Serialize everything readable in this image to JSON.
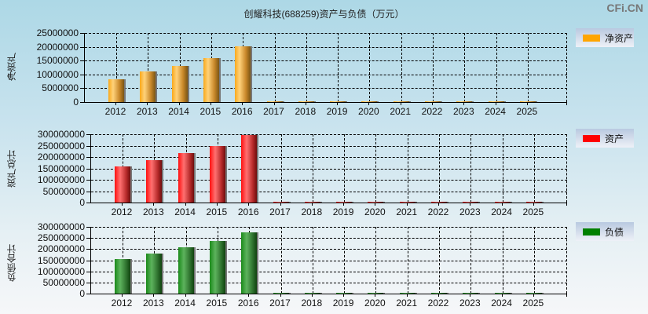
{
  "header": {
    "title": "创耀科技(688259)资产与负债（万元）",
    "watermark": "CFi.CN"
  },
  "colors": {
    "net_assets": "#FFA500",
    "assets": "#FF0000",
    "liabilities": "#008000"
  },
  "panels": [
    {
      "ylabel": "净资产",
      "legend": "净资产",
      "yticks": [
        "25000000",
        "20000000",
        "15000000",
        "10000000",
        "5000000",
        "0"
      ],
      "xticks": [
        "2012",
        "2013",
        "2014",
        "2015",
        "2016",
        "2017",
        "2018",
        "2019",
        "2020",
        "2021",
        "2022",
        "2023",
        "2024",
        "2025"
      ]
    },
    {
      "ylabel": "资产总计",
      "legend": "资产",
      "yticks": [
        "300000000",
        "250000000",
        "200000000",
        "150000000",
        "100000000",
        "50000000",
        "0"
      ],
      "xticks": [
        "2012",
        "2013",
        "2014",
        "2015",
        "2016",
        "2017",
        "2018",
        "2019",
        "2020",
        "2021",
        "2022",
        "2023",
        "2024",
        "2025"
      ]
    },
    {
      "ylabel": "负债合计",
      "legend": "负债",
      "yticks": [
        "300000000",
        "250000000",
        "200000000",
        "150000000",
        "100000000",
        "50000000",
        "0"
      ],
      "xticks": [
        "2012",
        "2013",
        "2014",
        "2015",
        "2016",
        "2017",
        "2018",
        "2019",
        "2020",
        "2021",
        "2022",
        "2023",
        "2024",
        "2025"
      ]
    }
  ],
  "chart_data": [
    {
      "type": "bar",
      "title": "创耀科技(688259)资产与负债（万元）",
      "xlabel": "",
      "ylabel": "净资产",
      "legend": [
        "净资产"
      ],
      "legend_position": "right",
      "grid": true,
      "ylim": [
        0,
        25000000
      ],
      "categories": [
        "2012",
        "2013",
        "2014",
        "2015",
        "2016",
        "2017",
        "2018",
        "2019",
        "2020",
        "2021",
        "2022",
        "2023",
        "2024",
        "2025"
      ],
      "values": [
        8200000,
        11100000,
        13100000,
        15900000,
        20200000,
        0,
        0,
        0,
        0,
        0,
        0,
        0,
        0,
        0
      ]
    },
    {
      "type": "bar",
      "xlabel": "",
      "ylabel": "资产总计",
      "legend": [
        "资产"
      ],
      "legend_position": "right",
      "grid": true,
      "ylim": [
        0,
        300000000
      ],
      "categories": [
        "2012",
        "2013",
        "2014",
        "2015",
        "2016",
        "2017",
        "2018",
        "2019",
        "2020",
        "2021",
        "2022",
        "2023",
        "2024",
        "2025"
      ],
      "values": [
        160000000,
        187000000,
        218000000,
        249000000,
        297000000,
        0,
        0,
        0,
        0,
        0,
        0,
        0,
        0,
        0
      ]
    },
    {
      "type": "bar",
      "xlabel": "",
      "ylabel": "负债合计",
      "legend": [
        "负债"
      ],
      "legend_position": "right",
      "grid": true,
      "ylim": [
        0,
        300000000
      ],
      "categories": [
        "2012",
        "2013",
        "2014",
        "2015",
        "2016",
        "2017",
        "2018",
        "2019",
        "2020",
        "2021",
        "2022",
        "2023",
        "2024",
        "2025"
      ],
      "values": [
        154000000,
        179000000,
        207000000,
        236000000,
        275000000,
        0,
        0,
        0,
        0,
        0,
        0,
        0,
        0,
        0
      ]
    }
  ]
}
